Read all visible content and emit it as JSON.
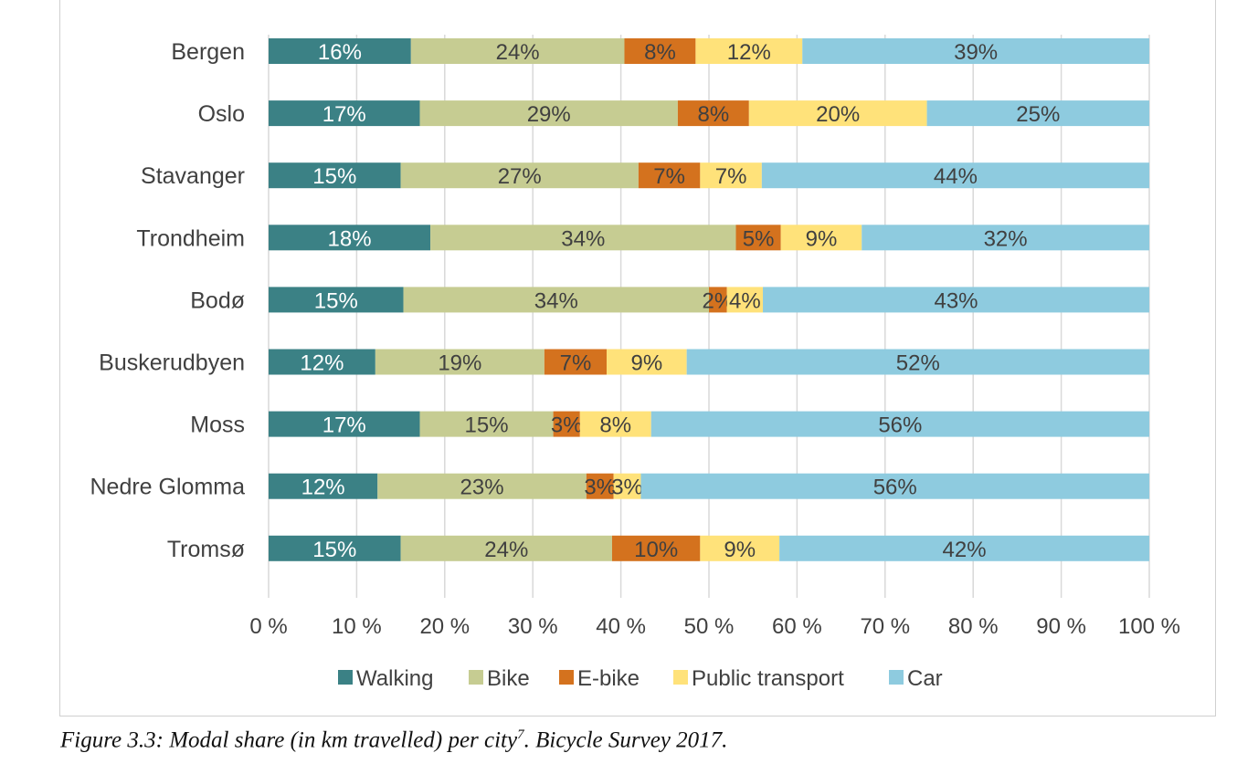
{
  "chart_data": {
    "type": "bar",
    "orientation": "horizontal",
    "stacked": "percent",
    "categories": [
      "Bergen",
      "Oslo",
      "Stavanger",
      "Trondheim",
      "Bodø",
      "Buskerudbyen",
      "Moss",
      "Nedre Glomma",
      "Tromsø"
    ],
    "series": [
      {
        "name": "Walking",
        "color": "#3b8185",
        "label_color": "#ffffff",
        "values": [
          16,
          17,
          15,
          18,
          15,
          12,
          17,
          12,
          15
        ]
      },
      {
        "name": "Bike",
        "color": "#c6cc92",
        "label_color": "#404040",
        "values": [
          24,
          29,
          27,
          34,
          34,
          19,
          15,
          23,
          24
        ]
      },
      {
        "name": "E-bike",
        "color": "#d4721e",
        "label_color": "#404040",
        "values": [
          8,
          8,
          7,
          5,
          2,
          7,
          3,
          3,
          10
        ]
      },
      {
        "name": "Public transport",
        "color": "#ffe27a",
        "label_color": "#404040",
        "values": [
          12,
          20,
          7,
          9,
          4,
          9,
          8,
          3,
          9
        ]
      },
      {
        "name": "Car",
        "color": "#8ecbdf",
        "label_color": "#404040",
        "values": [
          39,
          25,
          44,
          32,
          43,
          52,
          56,
          56,
          42
        ]
      }
    ],
    "xlim": [
      0,
      100
    ],
    "x_ticks": [
      "0 %",
      "10 %",
      "20 %",
      "30 %",
      "40 %",
      "50 %",
      "60 %",
      "70 %",
      "80 %",
      "90 %",
      "100 %"
    ],
    "grid": "vertical",
    "legend": "bottom"
  },
  "caption": {
    "text": "Figure 3.3: Modal share (in km travelled) per city",
    "superscript": "7",
    "suffix": ". Bicycle Survey 2017."
  }
}
